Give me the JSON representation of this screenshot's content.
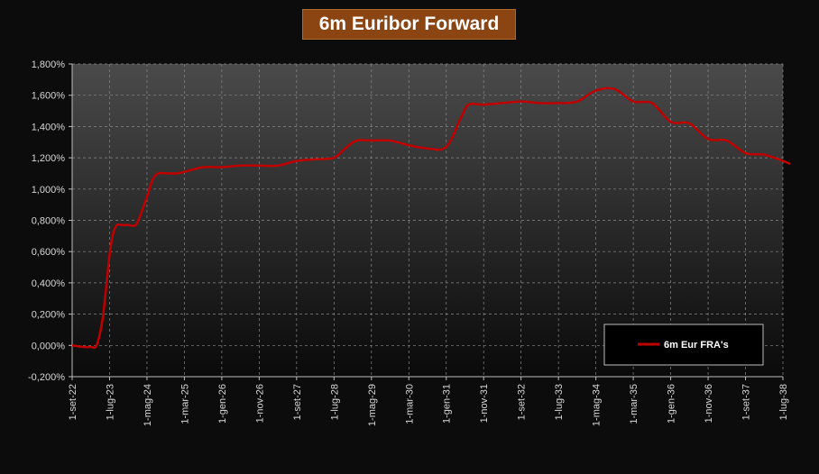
{
  "colors": {
    "background": "#0c0c0c",
    "title_bg": "#8b4513",
    "series_line": "#c00000",
    "text": "#d8d8d8",
    "legend_text": "#ffffff"
  },
  "chart_data": {
    "type": "line",
    "title": "6m Euribor Forward",
    "xlabel": "",
    "ylabel": "",
    "ylim": [
      -0.002,
      0.018
    ],
    "yticks": [
      -0.002,
      0.0,
      0.002,
      0.004,
      0.006,
      0.008,
      0.01,
      0.012,
      0.014,
      0.016,
      0.018
    ],
    "ytick_labels": [
      "-0,200%",
      "0,000%",
      "0,200%",
      "0,400%",
      "0,600%",
      "0,800%",
      "1,000%",
      "1,200%",
      "1,400%",
      "1,600%",
      "1,800%"
    ],
    "x_categories": [
      "1-set-22",
      "1-lug-23",
      "1-mag-24",
      "1-mar-25",
      "1-gen-26",
      "1-nov-26",
      "1-set-27",
      "1-lug-28",
      "1-mag-29",
      "1-mar-30",
      "1-gen-31",
      "1-nov-31",
      "1-set-32",
      "1-lug-33",
      "1-mag-34",
      "1-mar-35",
      "1-gen-36",
      "1-nov-36",
      "1-set-37",
      "1-lug-38"
    ],
    "grid": true,
    "legend_position": "bottom-right",
    "series": [
      {
        "name": "6m Eur FRA's",
        "color": "#c00000",
        "x": [
          0,
          0.3,
          0.5,
          0.65,
          0.8,
          0.9,
          1.0,
          1.1,
          1.2,
          1.35,
          1.5,
          1.7,
          1.85,
          2.0,
          2.15,
          2.3,
          2.5,
          2.8,
          3.0,
          3.5,
          4.0,
          4.5,
          5.0,
          5.5,
          6.0,
          6.5,
          7.0,
          7.3,
          7.6,
          8.0,
          8.5,
          9.0,
          9.5,
          10.0,
          10.4,
          10.6,
          11.0,
          11.5,
          12.0,
          12.5,
          13.0,
          13.5,
          14.0,
          14.5,
          15.0,
          15.5,
          16.0,
          16.5,
          17.0,
          17.5,
          18.0,
          18.5,
          19.0,
          19.2
        ],
        "y": [
          0.0,
          -0.0001,
          -0.0001,
          0.0,
          0.0015,
          0.0035,
          0.0058,
          0.0072,
          0.0077,
          0.0077,
          0.0077,
          0.0077,
          0.0085,
          0.0095,
          0.0106,
          0.011,
          0.011,
          0.011,
          0.0111,
          0.0114,
          0.0114,
          0.0115,
          0.0115,
          0.0115,
          0.0118,
          0.0119,
          0.012,
          0.0126,
          0.0131,
          0.0131,
          0.0131,
          0.0128,
          0.0126,
          0.0127,
          0.0146,
          0.0154,
          0.0154,
          0.0155,
          0.0156,
          0.0155,
          0.0155,
          0.0156,
          0.0163,
          0.0164,
          0.0156,
          0.0155,
          0.0143,
          0.0142,
          0.0132,
          0.0131,
          0.0123,
          0.0122,
          0.0118,
          0.0116
        ]
      }
    ]
  }
}
